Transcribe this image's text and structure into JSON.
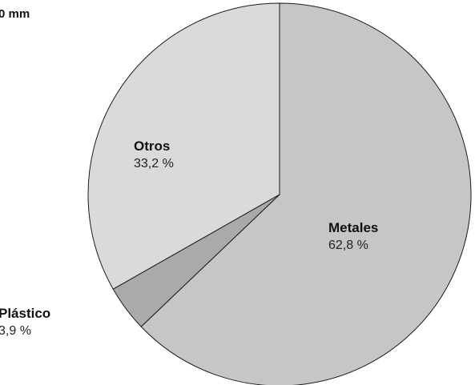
{
  "top_note": "0 mm",
  "chart_data": {
    "type": "pie",
    "title": "",
    "slices": [
      {
        "label": "Metales",
        "value": 62.8,
        "value_text": "62,8 %",
        "color": "#c6c6c6"
      },
      {
        "label": "Plástico",
        "value": 3.9,
        "value_text": "3,9 %",
        "color": "#aaaaaa"
      },
      {
        "label": "Otros",
        "value": 33.2,
        "value_text": "33,2 %",
        "color": "#dadada"
      }
    ],
    "start_angle": "12 o'clock",
    "direction": "clockwise",
    "legend": "none (labels placed next to slices)"
  }
}
